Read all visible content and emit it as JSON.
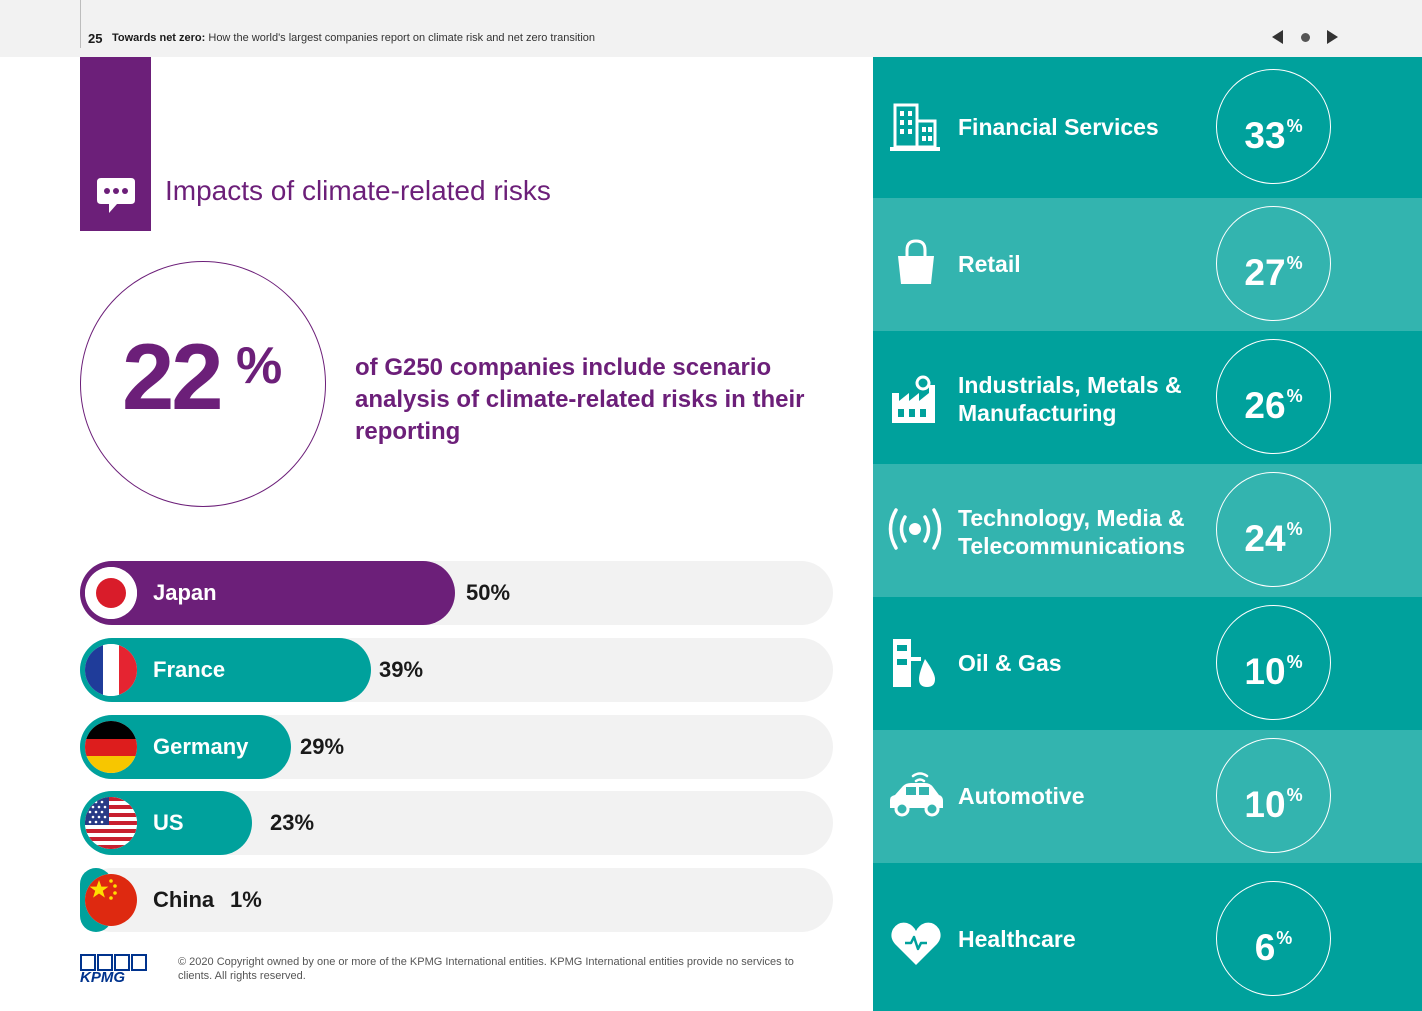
{
  "header": {
    "page_number": "25",
    "title_bold": "Towards net zero:",
    "title_rest": " How the world's largest companies report on climate risk and net zero transition"
  },
  "section": {
    "title": "Impacts of climate-related risks",
    "icon": "speech-bubble-icon"
  },
  "headline_stat": {
    "value": "22",
    "unit": "%",
    "text": "of G250 companies include scenario analysis of climate-related risks in their reporting"
  },
  "countries": [
    {
      "name": "Japan",
      "value": "50%",
      "percent": 50,
      "color": "#6c1f79",
      "flag": "japan-flag-icon"
    },
    {
      "name": "France",
      "value": "39%",
      "percent": 39,
      "color": "#00a19c",
      "flag": "france-flag-icon"
    },
    {
      "name": "Germany",
      "value": "29%",
      "percent": 29,
      "color": "#00a19c",
      "flag": "germany-flag-icon"
    },
    {
      "name": "US",
      "value": "23%",
      "percent": 23,
      "color": "#00a19c",
      "flag": "us-flag-icon"
    },
    {
      "name": "China",
      "value": "1%",
      "percent": 1,
      "color": "#00a19c",
      "flag": "china-flag-icon"
    }
  ],
  "sectors": [
    {
      "line1": "Financial Services",
      "line2": "",
      "value": "33",
      "unit": "%",
      "icon": "office-building-icon"
    },
    {
      "line1": "Retail",
      "line2": "",
      "value": "27",
      "unit": "%",
      "icon": "shopping-bag-icon"
    },
    {
      "line1": "Industrials, Metals &",
      "line2": "Manufacturing",
      "value": "26",
      "unit": "%",
      "icon": "factory-icon"
    },
    {
      "line1": "Technology, Media &",
      "line2": "Telecommunications",
      "value": "24",
      "unit": "%",
      "icon": "broadcast-signal-icon"
    },
    {
      "line1": "Oil & Gas",
      "line2": "",
      "value": "10",
      "unit": "%",
      "icon": "oil-drop-icon"
    },
    {
      "line1": "Automotive",
      "line2": "",
      "value": "10",
      "unit": "%",
      "icon": "connected-car-icon"
    },
    {
      "line1": "Healthcare",
      "line2": "",
      "value": "6",
      "unit": "%",
      "icon": "heart-icon"
    }
  ],
  "footer": {
    "logo_text": "KPMG",
    "copyright": "© 2020 Copyright owned by one or more of the KPMG International entities. KPMG International entities provide no services to clients.  All rights reserved."
  },
  "colors": {
    "purple": "#6c1f79",
    "teal": "#00a19c",
    "teal_light": "#33b4af",
    "kpmg_blue": "#00338d"
  }
}
